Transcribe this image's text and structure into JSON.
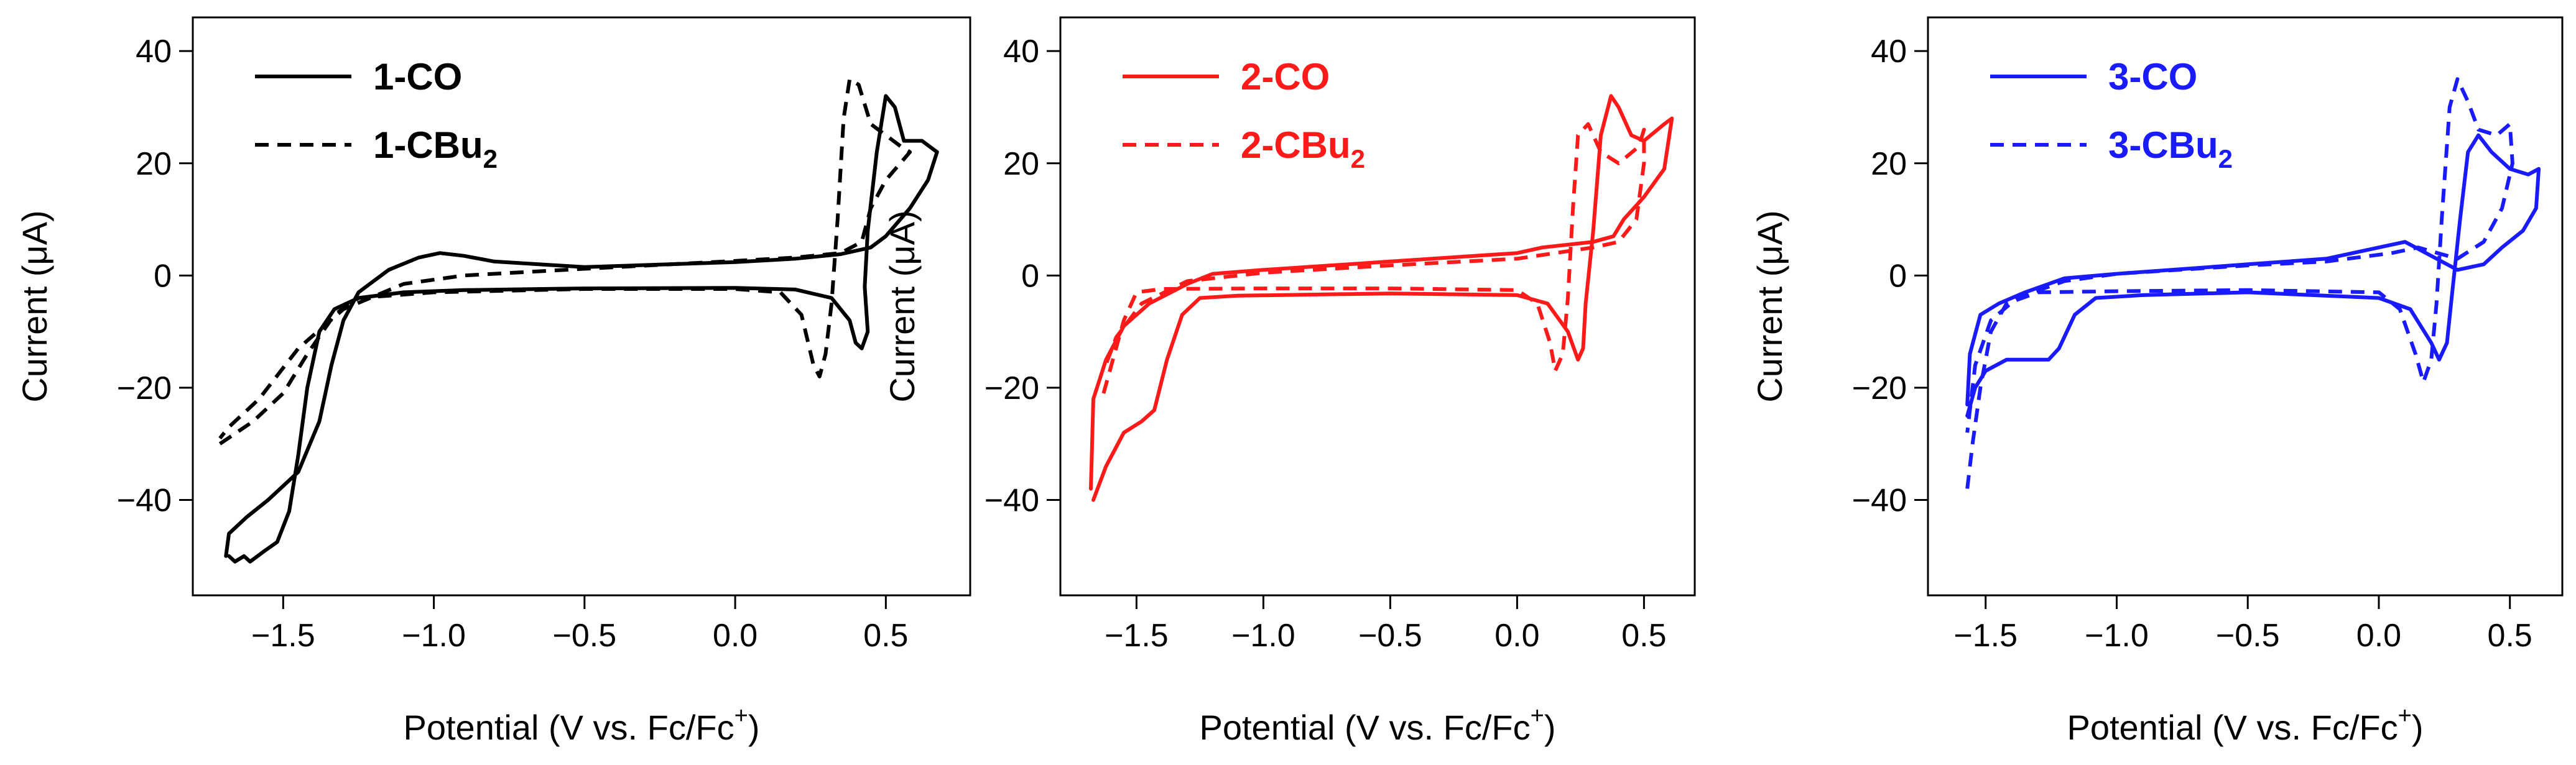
{
  "chart_data": [
    {
      "type": "line",
      "panel_id": "panel-1",
      "color": "#000000",
      "xlabel": "Potential (V vs. Fc/Fc",
      "xlabel_sup": "+",
      "xlabel_close": ")",
      "ylabel": "Current (μA)",
      "xlim": [
        -1.8,
        0.78
      ],
      "ylim": [
        -57,
        46
      ],
      "xticks": [
        -1.5,
        -1.0,
        -0.5,
        0.0,
        0.5
      ],
      "xtick_labels": [
        "−1.5",
        "−1.0",
        "−0.5",
        "0.0",
        "0.5"
      ],
      "yticks": [
        -40,
        -20,
        0,
        20,
        40
      ],
      "ytick_labels": [
        "−40",
        "−20",
        "0",
        "20",
        "40"
      ],
      "legend_position": "top-left",
      "series": [
        {
          "name": "1-CO",
          "name_base": "1-CO",
          "name_sub": "",
          "dash": "solid",
          "points": [
            [
              -1.68,
              -50
            ],
            [
              -1.66,
              -51
            ],
            [
              -1.63,
              -50
            ],
            [
              -1.61,
              -51
            ],
            [
              -1.56,
              -49
            ],
            [
              -1.52,
              -47.5
            ],
            [
              -1.48,
              -42
            ],
            [
              -1.45,
              -32
            ],
            [
              -1.42,
              -20
            ],
            [
              -1.38,
              -10
            ],
            [
              -1.33,
              -6
            ],
            [
              -1.25,
              -4
            ],
            [
              -1.1,
              -3
            ],
            [
              -0.9,
              -2.6
            ],
            [
              -0.5,
              -2.3
            ],
            [
              0.0,
              -2.2
            ],
            [
              0.2,
              -2.5
            ],
            [
              0.32,
              -4
            ],
            [
              0.38,
              -8
            ],
            [
              0.4,
              -12
            ],
            [
              0.42,
              -13
            ],
            [
              0.44,
              -10
            ],
            [
              0.43,
              -2
            ],
            [
              0.44,
              8
            ],
            [
              0.47,
              22
            ],
            [
              0.5,
              32
            ],
            [
              0.53,
              30
            ],
            [
              0.56,
              24
            ],
            [
              0.62,
              24
            ],
            [
              0.67,
              22
            ],
            [
              0.64,
              17
            ],
            [
              0.58,
              12
            ],
            [
              0.5,
              7
            ],
            [
              0.45,
              5
            ],
            [
              0.35,
              3.8
            ],
            [
              0.2,
              3
            ],
            [
              0.0,
              2.4
            ],
            [
              -0.5,
              1.5
            ],
            [
              -0.8,
              2.5
            ],
            [
              -0.9,
              3.5
            ],
            [
              -0.98,
              4
            ],
            [
              -1.05,
              3.2
            ],
            [
              -1.15,
              1
            ],
            [
              -1.25,
              -3
            ],
            [
              -1.3,
              -8
            ],
            [
              -1.34,
              -16
            ],
            [
              -1.38,
              -26
            ],
            [
              -1.45,
              -35
            ],
            [
              -1.55,
              -40
            ],
            [
              -1.62,
              -43
            ],
            [
              -1.68,
              -46
            ],
            [
              -1.69,
              -50
            ]
          ]
        },
        {
          "name": "1-CBu2",
          "name_base": "1-CBu",
          "name_sub": "2",
          "dash": "dashed",
          "points": [
            [
              -1.71,
              -30
            ],
            [
              -1.6,
              -26
            ],
            [
              -1.5,
              -21
            ],
            [
              -1.42,
              -14
            ],
            [
              -1.33,
              -7
            ],
            [
              -1.25,
              -4
            ],
            [
              -1.0,
              -3
            ],
            [
              -0.5,
              -2.4
            ],
            [
              0.0,
              -2.4
            ],
            [
              0.15,
              -3
            ],
            [
              0.22,
              -7
            ],
            [
              0.26,
              -16
            ],
            [
              0.28,
              -18
            ],
            [
              0.3,
              -14
            ],
            [
              0.32,
              -5
            ],
            [
              0.34,
              10
            ],
            [
              0.36,
              28
            ],
            [
              0.38,
              35
            ],
            [
              0.41,
              34
            ],
            [
              0.45,
              27
            ],
            [
              0.55,
              23
            ],
            [
              0.58,
              22
            ],
            [
              0.5,
              17
            ],
            [
              0.45,
              12
            ],
            [
              0.42,
              6
            ],
            [
              0.35,
              4
            ],
            [
              0.2,
              3.2
            ],
            [
              0.0,
              2.6
            ],
            [
              -0.5,
              1.2
            ],
            [
              -0.9,
              0
            ],
            [
              -1.1,
              -1.5
            ],
            [
              -1.3,
              -6
            ],
            [
              -1.45,
              -13
            ],
            [
              -1.58,
              -22
            ],
            [
              -1.68,
              -27
            ],
            [
              -1.71,
              -29
            ]
          ]
        }
      ]
    },
    {
      "type": "line",
      "panel_id": "panel-2",
      "color": "#ff1a1a",
      "xlabel": "Potential (V vs. Fc/Fc",
      "xlabel_sup": "+",
      "xlabel_close": ")",
      "ylabel": "Current (μA)",
      "xlim": [
        -1.8,
        0.7
      ],
      "ylim": [
        -57,
        46
      ],
      "xticks": [
        -1.5,
        -1.0,
        -0.5,
        0.0,
        0.5
      ],
      "xtick_labels": [
        "−1.5",
        "−1.0",
        "−0.5",
        "0.0",
        "0.5"
      ],
      "yticks": [
        -40,
        -20,
        0,
        20,
        40
      ],
      "ytick_labels": [
        "−40",
        "−20",
        "0",
        "20",
        "40"
      ],
      "legend_position": "top-left",
      "series": [
        {
          "name": "2-CO",
          "name_base": "2-CO",
          "name_sub": "",
          "dash": "solid",
          "points": [
            [
              -1.67,
              -40
            ],
            [
              -1.62,
              -34
            ],
            [
              -1.55,
              -28
            ],
            [
              -1.48,
              -26
            ],
            [
              -1.43,
              -24
            ],
            [
              -1.38,
              -15
            ],
            [
              -1.32,
              -7
            ],
            [
              -1.25,
              -4
            ],
            [
              -1.1,
              -3.6
            ],
            [
              -0.5,
              -3.2
            ],
            [
              0.0,
              -3.5
            ],
            [
              0.12,
              -5
            ],
            [
              0.2,
              -10
            ],
            [
              0.24,
              -15
            ],
            [
              0.26,
              -13
            ],
            [
              0.27,
              -5
            ],
            [
              0.3,
              8
            ],
            [
              0.33,
              25
            ],
            [
              0.37,
              32
            ],
            [
              0.4,
              30
            ],
            [
              0.45,
              25
            ],
            [
              0.5,
              24
            ],
            [
              0.58,
              27
            ],
            [
              0.61,
              28
            ],
            [
              0.58,
              19
            ],
            [
              0.5,
              14
            ],
            [
              0.42,
              10
            ],
            [
              0.38,
              7
            ],
            [
              0.3,
              6
            ],
            [
              0.1,
              5
            ],
            [
              0.0,
              4
            ],
            [
              -0.5,
              2.5
            ],
            [
              -1.0,
              1
            ],
            [
              -1.2,
              0.3
            ],
            [
              -1.3,
              -1.5
            ],
            [
              -1.45,
              -5
            ],
            [
              -1.55,
              -9
            ],
            [
              -1.62,
              -15
            ],
            [
              -1.67,
              -22
            ],
            [
              -1.68,
              -38
            ]
          ]
        },
        {
          "name": "2-CBu2",
          "name_base": "2-CBu",
          "name_sub": "2",
          "dash": "dashed",
          "points": [
            [
              -1.63,
              -21
            ],
            [
              -1.55,
              -8
            ],
            [
              -1.5,
              -3
            ],
            [
              -1.4,
              -2.4
            ],
            [
              -1.0,
              -2.3
            ],
            [
              -0.5,
              -2.3
            ],
            [
              0.0,
              -2.6
            ],
            [
              0.08,
              -5
            ],
            [
              0.13,
              -12
            ],
            [
              0.15,
              -17
            ],
            [
              0.18,
              -14
            ],
            [
              0.2,
              -4
            ],
            [
              0.22,
              12
            ],
            [
              0.24,
              25
            ],
            [
              0.28,
              27
            ],
            [
              0.33,
              22
            ],
            [
              0.4,
              20
            ],
            [
              0.48,
              23
            ],
            [
              0.5,
              26
            ],
            [
              0.5,
              20
            ],
            [
              0.47,
              10
            ],
            [
              0.4,
              6
            ],
            [
              0.3,
              5
            ],
            [
              0.15,
              4
            ],
            [
              0.0,
              3
            ],
            [
              -0.5,
              1.8
            ],
            [
              -1.0,
              0.5
            ],
            [
              -1.3,
              -1
            ],
            [
              -1.48,
              -5
            ],
            [
              -1.58,
              -11
            ],
            [
              -1.63,
              -17
            ]
          ]
        }
      ]
    },
    {
      "type": "line",
      "panel_id": "panel-3",
      "color": "#1a1aff",
      "xlabel": "Potential (V vs. Fc/Fc",
      "xlabel_sup": "+",
      "xlabel_close": ")",
      "ylabel": "Current (μA)",
      "xlim": [
        -1.72,
        0.7
      ],
      "ylim": [
        -57,
        46
      ],
      "xticks": [
        -1.5,
        -1.0,
        -0.5,
        0.0,
        0.5
      ],
      "xtick_labels": [
        "−1.5",
        "−1.0",
        "−0.5",
        "0.0",
        "0.5"
      ],
      "yticks": [
        -40,
        -20,
        0,
        20,
        40
      ],
      "ytick_labels": [
        "−40",
        "−20",
        "0",
        "20",
        "40"
      ],
      "legend_position": "top-left",
      "series": [
        {
          "name": "3-CO",
          "name_base": "3-CO",
          "name_sub": "",
          "dash": "solid",
          "points": [
            [
              -1.57,
              -25
            ],
            [
              -1.54,
              -20
            ],
            [
              -1.5,
              -17
            ],
            [
              -1.42,
              -15
            ],
            [
              -1.33,
              -15
            ],
            [
              -1.26,
              -15
            ],
            [
              -1.22,
              -13
            ],
            [
              -1.16,
              -7
            ],
            [
              -1.08,
              -4
            ],
            [
              -0.9,
              -3.5
            ],
            [
              -0.5,
              -3
            ],
            [
              0.0,
              -4
            ],
            [
              0.12,
              -6
            ],
            [
              0.2,
              -12
            ],
            [
              0.23,
              -15
            ],
            [
              0.26,
              -12
            ],
            [
              0.28,
              -3
            ],
            [
              0.31,
              10
            ],
            [
              0.34,
              22
            ],
            [
              0.38,
              25
            ],
            [
              0.43,
              22
            ],
            [
              0.5,
              19
            ],
            [
              0.57,
              18
            ],
            [
              0.61,
              19
            ],
            [
              0.6,
              12
            ],
            [
              0.55,
              8
            ],
            [
              0.47,
              5
            ],
            [
              0.4,
              2
            ],
            [
              0.3,
              1
            ],
            [
              0.1,
              6
            ],
            [
              0.0,
              5
            ],
            [
              -0.2,
              3
            ],
            [
              -0.5,
              2
            ],
            [
              -1.0,
              0.3
            ],
            [
              -1.2,
              -0.5
            ],
            [
              -1.35,
              -3
            ],
            [
              -1.45,
              -5
            ],
            [
              -1.52,
              -7
            ],
            [
              -1.56,
              -14
            ],
            [
              -1.57,
              -23
            ]
          ]
        },
        {
          "name": "3-CBu2",
          "name_base": "3-CBu",
          "name_sub": "2",
          "dash": "dashed",
          "points": [
            [
              -1.57,
              -38
            ],
            [
              -1.55,
              -30
            ],
            [
              -1.52,
              -20
            ],
            [
              -1.48,
              -10
            ],
            [
              -1.42,
              -5
            ],
            [
              -1.3,
              -3
            ],
            [
              -1.0,
              -2.8
            ],
            [
              -0.5,
              -2.6
            ],
            [
              0.0,
              -3
            ],
            [
              0.08,
              -6
            ],
            [
              0.14,
              -14
            ],
            [
              0.17,
              -19
            ],
            [
              0.2,
              -15
            ],
            [
              0.22,
              -5
            ],
            [
              0.24,
              10
            ],
            [
              0.27,
              30
            ],
            [
              0.3,
              35
            ],
            [
              0.34,
              31
            ],
            [
              0.38,
              26
            ],
            [
              0.45,
              25
            ],
            [
              0.5,
              27
            ],
            [
              0.51,
              20
            ],
            [
              0.47,
              12
            ],
            [
              0.4,
              6
            ],
            [
              0.3,
              3
            ],
            [
              0.15,
              5
            ],
            [
              0.05,
              4
            ],
            [
              -0.2,
              2.5
            ],
            [
              -0.5,
              1.8
            ],
            [
              -1.0,
              0.3
            ],
            [
              -1.2,
              -1
            ],
            [
              -1.38,
              -4
            ],
            [
              -1.48,
              -8
            ],
            [
              -1.54,
              -16
            ],
            [
              -1.57,
              -28
            ]
          ]
        }
      ]
    }
  ]
}
